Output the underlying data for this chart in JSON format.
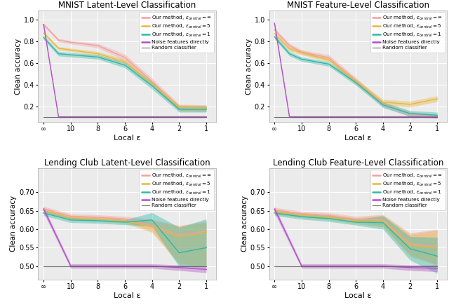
{
  "subplots": [
    {
      "title": "MNIST Latent-Level Classification",
      "ylabel": "Clean accuracy",
      "xlabel": "Local ε",
      "ylim": [
        0.06,
        1.08
      ],
      "yticks": [
        0.2,
        0.4,
        0.6,
        0.8,
        1.0
      ],
      "series": [
        {
          "label": "Our method, $\\varepsilon_{central} = \\infty$",
          "color": "#f4a0a0",
          "mean": [
            0.955,
            0.81,
            0.79,
            0.76,
            0.65,
            0.43,
            0.19,
            0.185
          ],
          "lower": [
            0.94,
            0.795,
            0.775,
            0.74,
            0.62,
            0.4,
            0.16,
            0.155
          ],
          "upper": [
            0.967,
            0.825,
            0.805,
            0.78,
            0.68,
            0.46,
            0.22,
            0.215
          ]
        },
        {
          "label": "Our method, $\\varepsilon_{central} = 5$",
          "color": "#e8b840",
          "mean": [
            0.875,
            0.735,
            0.72,
            0.685,
            0.61,
            0.41,
            0.19,
            0.185
          ],
          "lower": [
            0.86,
            0.72,
            0.705,
            0.665,
            0.59,
            0.385,
            0.165,
            0.16
          ],
          "upper": [
            0.89,
            0.75,
            0.735,
            0.705,
            0.635,
            0.435,
            0.215,
            0.21
          ]
        },
        {
          "label": "Our method, $\\varepsilon_{central} = 1$",
          "color": "#30b8a8",
          "mean": [
            0.835,
            0.685,
            0.675,
            0.655,
            0.58,
            0.39,
            0.175,
            0.175
          ],
          "lower": [
            0.815,
            0.665,
            0.655,
            0.635,
            0.555,
            0.36,
            0.148,
            0.148
          ],
          "upper": [
            0.855,
            0.705,
            0.695,
            0.675,
            0.605,
            0.425,
            0.205,
            0.205
          ]
        },
        {
          "label": "Noise features directly",
          "color": "#b050c8",
          "mean": [
            0.955,
            0.105,
            0.105,
            0.105,
            0.105,
            0.105,
            0.105,
            0.105
          ],
          "lower": [
            0.94,
            0.096,
            0.096,
            0.096,
            0.096,
            0.096,
            0.096,
            0.096
          ],
          "upper": [
            0.967,
            0.114,
            0.114,
            0.114,
            0.114,
            0.114,
            0.114,
            0.114
          ]
        },
        {
          "label": "Random classifier",
          "color": "#606060",
          "mean": [
            0.1,
            0.1,
            0.1,
            0.1,
            0.1,
            0.1,
            0.1,
            0.1
          ],
          "lower": null,
          "upper": null
        }
      ]
    },
    {
      "title": "MNIST Feature-Level Classification",
      "ylabel": "Clean accuracy",
      "xlabel": "Local ε",
      "ylim": [
        0.06,
        1.08
      ],
      "yticks": [
        0.2,
        0.4,
        0.6,
        0.8,
        1.0
      ],
      "series": [
        {
          "label": "Our method, $\\varepsilon_{central} = \\infty$",
          "color": "#f4a0a0",
          "mean": [
            0.905,
            0.76,
            0.7,
            0.65,
            0.44,
            0.22,
            0.13,
            0.105
          ],
          "lower": [
            0.89,
            0.74,
            0.68,
            0.625,
            0.415,
            0.195,
            0.108,
            0.09
          ],
          "upper": [
            0.92,
            0.78,
            0.72,
            0.675,
            0.465,
            0.245,
            0.155,
            0.122
          ]
        },
        {
          "label": "Our method, $\\varepsilon_{central} = 5$",
          "color": "#e8b840",
          "mean": [
            0.87,
            0.73,
            0.695,
            0.63,
            0.43,
            0.24,
            0.22,
            0.27
          ],
          "lower": [
            0.85,
            0.71,
            0.675,
            0.61,
            0.405,
            0.215,
            0.195,
            0.245
          ],
          "upper": [
            0.89,
            0.75,
            0.715,
            0.65,
            0.455,
            0.265,
            0.248,
            0.298
          ]
        },
        {
          "label": "Our method, $\\varepsilon_{central} = 1$",
          "color": "#30b8a8",
          "mean": [
            0.84,
            0.685,
            0.635,
            0.59,
            0.42,
            0.215,
            0.135,
            0.12
          ],
          "lower": [
            0.82,
            0.665,
            0.615,
            0.57,
            0.395,
            0.19,
            0.11,
            0.095
          ],
          "upper": [
            0.86,
            0.705,
            0.655,
            0.61,
            0.445,
            0.24,
            0.162,
            0.148
          ]
        },
        {
          "label": "Noise features directly",
          "color": "#b050c8",
          "mean": [
            0.965,
            0.105,
            0.105,
            0.105,
            0.105,
            0.105,
            0.105,
            0.105
          ],
          "lower": [
            0.95,
            0.096,
            0.096,
            0.096,
            0.096,
            0.096,
            0.096,
            0.096
          ],
          "upper": [
            0.978,
            0.114,
            0.114,
            0.114,
            0.114,
            0.114,
            0.114,
            0.114
          ]
        },
        {
          "label": "Random classifier",
          "color": "#606060",
          "mean": [
            0.1,
            0.1,
            0.1,
            0.1,
            0.1,
            0.1,
            0.1,
            0.1
          ],
          "lower": null,
          "upper": null
        }
      ]
    },
    {
      "title": "Lending Club Latent-Level Classification",
      "ylabel": "Clean accuracy",
      "xlabel": "Local ε",
      "ylim": [
        0.464,
        0.765
      ],
      "yticks": [
        0.5,
        0.55,
        0.6,
        0.65,
        0.7
      ],
      "series": [
        {
          "label": "Our method, $\\varepsilon_{central} = \\infty$",
          "color": "#f4a0a0",
          "mean": [
            0.655,
            0.635,
            0.632,
            0.628,
            0.61,
            0.585,
            0.595
          ],
          "lower": [
            0.648,
            0.628,
            0.625,
            0.621,
            0.595,
            0.508,
            0.5
          ],
          "upper": [
            0.662,
            0.642,
            0.639,
            0.635,
            0.627,
            0.61,
            0.622
          ]
        },
        {
          "label": "Our method, $\\varepsilon_{central} = 5$",
          "color": "#e8b840",
          "mean": [
            0.651,
            0.631,
            0.628,
            0.623,
            0.606,
            0.58,
            0.59
          ],
          "lower": [
            0.644,
            0.624,
            0.621,
            0.616,
            0.591,
            0.504,
            0.498
          ],
          "upper": [
            0.658,
            0.638,
            0.635,
            0.63,
            0.623,
            0.608,
            0.619
          ]
        },
        {
          "label": "Our method, $\\varepsilon_{central} = 1$",
          "color": "#30b8a8",
          "mean": [
            0.644,
            0.625,
            0.623,
            0.619,
            0.625,
            0.536,
            0.55
          ],
          "lower": [
            0.637,
            0.618,
            0.616,
            0.612,
            0.608,
            0.498,
            0.498
          ],
          "upper": [
            0.651,
            0.632,
            0.63,
            0.626,
            0.645,
            0.605,
            0.628
          ]
        },
        {
          "label": "Noise features directly",
          "color": "#b050c8",
          "mean": [
            0.655,
            0.5,
            0.5,
            0.5,
            0.5,
            0.496,
            0.491
          ],
          "lower": [
            0.644,
            0.494,
            0.494,
            0.494,
            0.494,
            0.488,
            0.482
          ],
          "upper": [
            0.662,
            0.506,
            0.506,
            0.506,
            0.506,
            0.503,
            0.5
          ]
        },
        {
          "label": "Random classifier",
          "color": "#606060",
          "mean": [
            0.5,
            0.5,
            0.5,
            0.5,
            0.5,
            0.5,
            0.5
          ],
          "lower": null,
          "upper": null
        }
      ]
    },
    {
      "title": "Lending Club Feature-Level Classification",
      "ylabel": "Clean accuracy",
      "xlabel": "Local ε",
      "ylim": [
        0.464,
        0.765
      ],
      "yticks": [
        0.5,
        0.55,
        0.6,
        0.65,
        0.7
      ],
      "series": [
        {
          "label": "Our method, $\\varepsilon_{central} = \\infty$",
          "color": "#f4a0a0",
          "mean": [
            0.652,
            0.642,
            0.637,
            0.627,
            0.625,
            0.56,
            0.555
          ],
          "lower": [
            0.645,
            0.635,
            0.629,
            0.619,
            0.61,
            0.53,
            0.505
          ],
          "upper": [
            0.659,
            0.649,
            0.645,
            0.635,
            0.64,
            0.59,
            0.6
          ]
        },
        {
          "label": "Our method, $\\varepsilon_{central} = 5$",
          "color": "#e8b840",
          "mean": [
            0.648,
            0.638,
            0.633,
            0.623,
            0.622,
            0.556,
            0.551
          ],
          "lower": [
            0.641,
            0.631,
            0.625,
            0.615,
            0.606,
            0.526,
            0.501
          ],
          "upper": [
            0.655,
            0.645,
            0.641,
            0.631,
            0.638,
            0.586,
            0.598
          ]
        },
        {
          "label": "Our method, $\\varepsilon_{central} = 1$",
          "color": "#30b8a8",
          "mean": [
            0.644,
            0.634,
            0.629,
            0.619,
            0.618,
            0.547,
            0.527
          ],
          "lower": [
            0.637,
            0.627,
            0.621,
            0.611,
            0.6,
            0.516,
            0.48
          ],
          "upper": [
            0.651,
            0.641,
            0.637,
            0.627,
            0.636,
            0.58,
            0.578
          ]
        },
        {
          "label": "Noise features directly",
          "color": "#b050c8",
          "mean": [
            0.655,
            0.5,
            0.5,
            0.5,
            0.5,
            0.496,
            0.494
          ],
          "lower": [
            0.644,
            0.494,
            0.494,
            0.494,
            0.494,
            0.488,
            0.485
          ],
          "upper": [
            0.662,
            0.506,
            0.506,
            0.506,
            0.506,
            0.503,
            0.503
          ]
        },
        {
          "label": "Random classifier",
          "color": "#606060",
          "mean": [
            0.5,
            0.5,
            0.5,
            0.5,
            0.5,
            0.5,
            0.5
          ],
          "lower": null,
          "upper": null
        }
      ]
    }
  ]
}
